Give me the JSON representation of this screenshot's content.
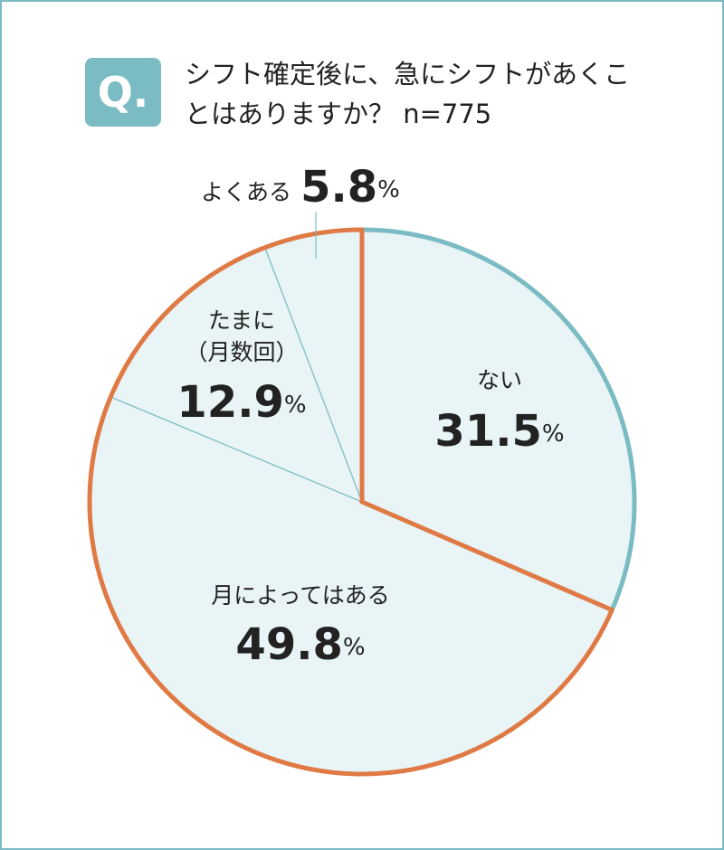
{
  "badge": "Q.",
  "chart_data": {
    "type": "pie",
    "title": "シフト確定後に、急にシフトがあくことはありますか？ n=775",
    "categories": [
      "ない",
      "月によってはある",
      "たまに（月数回）",
      "よくある"
    ],
    "values": [
      31.5,
      49.8,
      12.9,
      5.8
    ],
    "value_labels": [
      "31.5%",
      "49.8%",
      "12.9%",
      "5.8%"
    ],
    "colors": [
      "#7bbcc4",
      "#e07a45",
      "#e07a45",
      "#e07a45"
    ],
    "fill": "#e8f4f5"
  }
}
